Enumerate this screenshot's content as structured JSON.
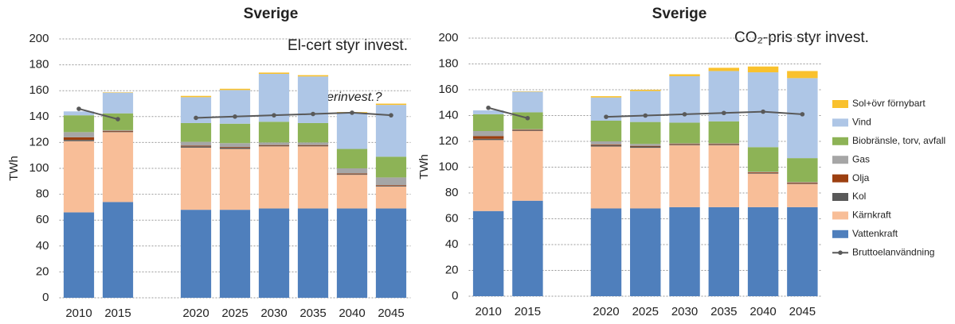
{
  "chart_data": [
    {
      "type": "bar",
      "stacked": true,
      "title": "Sverige",
      "ylabel": "TWh",
      "annotations": [
        "El-cert styr invest.",
        "Återinvest.?"
      ],
      "categories": [
        "2010",
        "2015",
        null,
        "2020",
        "2025",
        "2030",
        "2035",
        "2040",
        "2045"
      ],
      "ylim": [
        0,
        200
      ],
      "yticks": [
        0,
        20,
        40,
        60,
        80,
        100,
        120,
        140,
        160,
        180,
        200
      ],
      "grid": true,
      "series": [
        {
          "color": "#4f7fbc",
          "values": [
            66,
            74,
            null,
            68,
            68,
            69,
            69,
            69,
            69
          ]
        },
        {
          "color": "#f8be98",
          "values": [
            55,
            54,
            null,
            48,
            47,
            48,
            48,
            26,
            17
          ]
        },
        {
          "color": "#595959",
          "values": [
            1,
            0.5,
            null,
            1,
            1,
            0.5,
            0.5,
            0.5,
            0.5
          ]
        },
        {
          "color": "#9c3f10",
          "values": [
            2,
            0.5,
            null,
            0.5,
            0.5,
            0.5,
            0.5,
            0.5,
            0.5
          ]
        },
        {
          "color": "#a6a6a6",
          "values": [
            4,
            0.5,
            null,
            3,
            3,
            2,
            2,
            4,
            6
          ]
        },
        {
          "color": "#8db356",
          "values": [
            13,
            13,
            null,
            14.5,
            15,
            16,
            15,
            15,
            16
          ]
        },
        {
          "color": "#aec6e6",
          "values": [
            3,
            16,
            null,
            20,
            26,
            37,
            36,
            28,
            40
          ]
        },
        {
          "color": "#f9c12d",
          "values": [
            0,
            0.3,
            null,
            1,
            1,
            1,
            1,
            0.5,
            1
          ]
        },
        {
          "type": "line",
          "color": "#595959",
          "values": [
            146,
            138,
            null,
            139,
            140,
            141,
            142,
            143,
            141
          ]
        }
      ]
    },
    {
      "type": "bar",
      "stacked": true,
      "title": "Sverige",
      "ylabel": "TWh",
      "annotations": [
        "CO₂-pris styr invest."
      ],
      "categories": [
        "2010",
        "2015",
        null,
        "2020",
        "2025",
        "2030",
        "2035",
        "2040",
        "2045"
      ],
      "ylim": [
        0,
        200
      ],
      "yticks": [
        0,
        20,
        40,
        60,
        80,
        100,
        120,
        140,
        160,
        180,
        200
      ],
      "grid": true,
      "legend": "right",
      "series": [
        {
          "name": "Vattenkraft",
          "color": "#4f7fbc",
          "values": [
            66,
            74,
            null,
            68,
            68,
            69,
            69,
            69,
            69
          ]
        },
        {
          "name": "Kärnkraft",
          "color": "#f8be98",
          "values": [
            55,
            54,
            null,
            48,
            47,
            48,
            48,
            26,
            18
          ]
        },
        {
          "name": "Kol",
          "color": "#595959",
          "values": [
            1,
            0.5,
            null,
            1,
            1,
            0.5,
            0.5,
            0.5,
            0.5
          ]
        },
        {
          "name": "Olja",
          "color": "#9c3f10",
          "values": [
            2,
            0.5,
            null,
            0.5,
            0.5,
            0.5,
            0.5,
            0.5,
            0.5
          ]
        },
        {
          "name": "Gas",
          "color": "#a6a6a6",
          "values": [
            4,
            0.5,
            null,
            2.5,
            1.5,
            0.5,
            0.5,
            0.5,
            0.5
          ]
        },
        {
          "name": "Biobränsle, torv, avfall",
          "color": "#8db356",
          "values": [
            13,
            13,
            null,
            16,
            17,
            16,
            17,
            19,
            18.5
          ]
        },
        {
          "name": "Vind",
          "color": "#aec6e6",
          "values": [
            3,
            16,
            null,
            18,
            24,
            36,
            39,
            58,
            62
          ]
        },
        {
          "name": "Sol+övr förnybart",
          "color": "#f9c12d",
          "values": [
            0,
            0.3,
            null,
            1,
            1,
            1.5,
            2.5,
            4.5,
            5.5
          ]
        },
        {
          "name": "Bruttoelanvändning",
          "type": "line",
          "color": "#595959",
          "values": [
            146,
            138,
            null,
            139,
            140,
            141,
            142,
            143,
            141
          ]
        }
      ]
    }
  ]
}
